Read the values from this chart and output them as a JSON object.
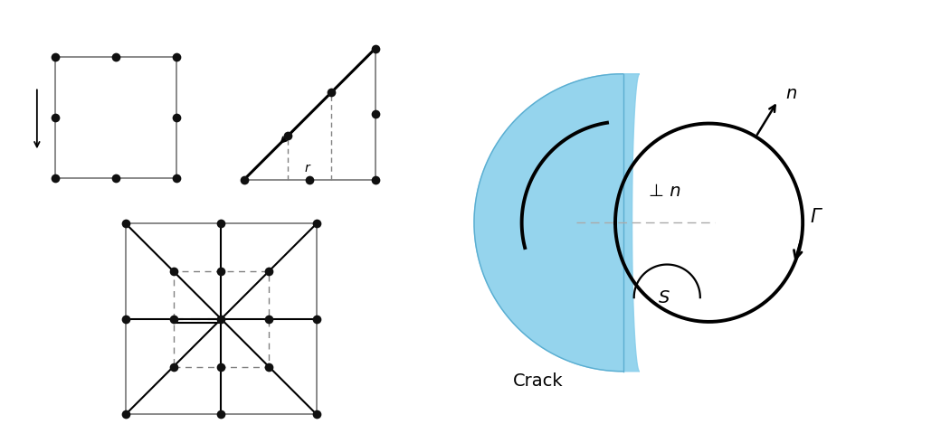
{
  "fig_width": 10.4,
  "fig_height": 4.9,
  "bg_color": "#ffffff",
  "dot_color": "#101010",
  "line_color": "#808080",
  "black": "#000000",
  "blue_fill": "#87CEEB",
  "crack_label": "Crack",
  "n_label": "n",
  "perp_n_label": "⊥ n",
  "gamma_label": "Γ",
  "s_label": "S"
}
